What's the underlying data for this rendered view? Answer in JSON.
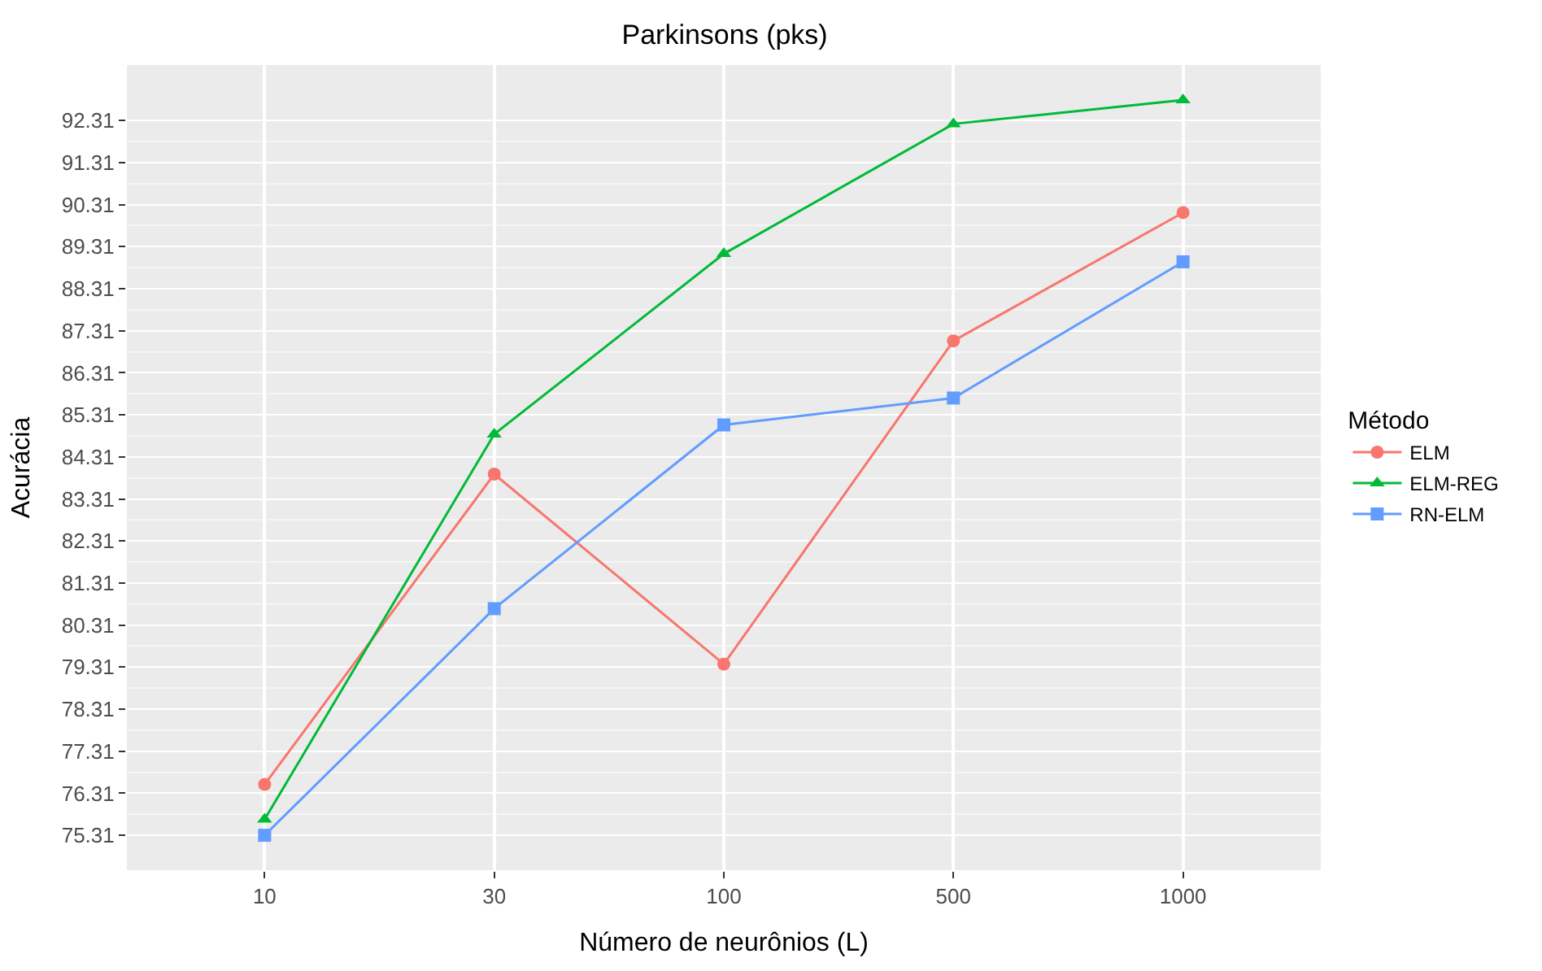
{
  "chart_data": {
    "type": "line",
    "title": "Parkinsons (pks)",
    "xlabel": "Número de neurônios (L)",
    "ylabel": "Acurácia",
    "legend_title": "Método",
    "categories": [
      "10",
      "30",
      "100",
      "500",
      "1000"
    ],
    "series": [
      {
        "name": "ELM",
        "color": "#f8766d",
        "marker": "circle",
        "values": [
          76.52,
          83.9,
          79.38,
          87.07,
          90.12
        ]
      },
      {
        "name": "ELM-REG",
        "color": "#00ba38",
        "marker": "triangle",
        "values": [
          75.69,
          84.85,
          89.14,
          92.23,
          92.8
        ]
      },
      {
        "name": "RN-ELM",
        "color": "#619cff",
        "marker": "square",
        "values": [
          75.31,
          80.7,
          85.07,
          85.71,
          88.95
        ]
      }
    ],
    "ylim": [
      74.48,
      93.63
    ],
    "yticks": [
      75.31,
      76.31,
      77.31,
      78.31,
      79.31,
      80.31,
      81.31,
      82.31,
      83.31,
      84.31,
      85.31,
      86.31,
      87.31,
      88.31,
      89.31,
      90.31,
      91.31,
      92.31
    ],
    "grid": true,
    "legend": "right",
    "line_style": "solid"
  }
}
